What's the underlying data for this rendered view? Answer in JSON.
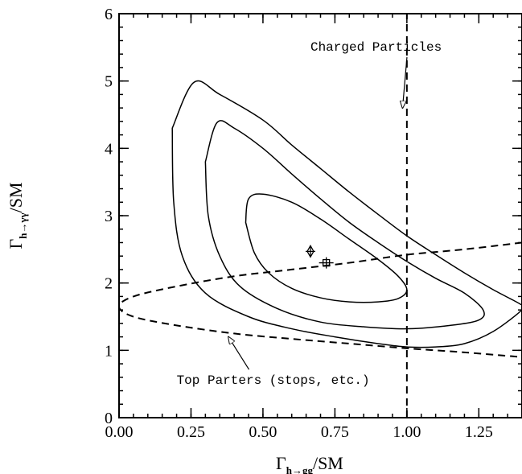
{
  "chart_data": {
    "type": "line",
    "title": "",
    "xlabel": {
      "symbol": "Γ",
      "sub": "h→gg",
      "suffix": "/SM"
    },
    "ylabel": {
      "symbol": "Γ",
      "sub": "h→γγ",
      "suffix": "/SM"
    },
    "xlim": [
      0.0,
      1.4
    ],
    "ylim": [
      0,
      6
    ],
    "xticks": [
      0.0,
      0.25,
      0.5,
      0.75,
      1.0,
      1.25
    ],
    "xtick_labels": [
      "0.00",
      "0.25",
      "0.50",
      "0.75",
      "1.00",
      "1.25"
    ],
    "yticks": [
      0,
      1,
      2,
      3,
      4,
      5,
      6
    ],
    "ytick_labels": [
      "0",
      "1",
      "2",
      "3",
      "4",
      "5",
      "6"
    ],
    "grid": false,
    "contours": [
      {
        "level": "inner",
        "points": [
          [
            0.44,
            2.9
          ],
          [
            0.45,
            3.25
          ],
          [
            0.5,
            3.32
          ],
          [
            0.6,
            3.2
          ],
          [
            0.7,
            2.95
          ],
          [
            0.8,
            2.65
          ],
          [
            0.9,
            2.35
          ],
          [
            0.97,
            2.1
          ],
          [
            1.0,
            1.9
          ],
          [
            0.97,
            1.77
          ],
          [
            0.9,
            1.72
          ],
          [
            0.8,
            1.72
          ],
          [
            0.7,
            1.78
          ],
          [
            0.6,
            1.92
          ],
          [
            0.52,
            2.15
          ],
          [
            0.47,
            2.45
          ],
          [
            0.44,
            2.9
          ]
        ]
      },
      {
        "level": "middle",
        "points": [
          [
            0.3,
            3.8
          ],
          [
            0.34,
            4.38
          ],
          [
            0.4,
            4.3
          ],
          [
            0.5,
            4.0
          ],
          [
            0.6,
            3.62
          ],
          [
            0.7,
            3.25
          ],
          [
            0.8,
            2.9
          ],
          [
            0.9,
            2.6
          ],
          [
            1.0,
            2.32
          ],
          [
            1.1,
            2.07
          ],
          [
            1.2,
            1.85
          ],
          [
            1.265,
            1.6
          ],
          [
            1.25,
            1.45
          ],
          [
            1.15,
            1.37
          ],
          [
            1.0,
            1.32
          ],
          [
            0.85,
            1.35
          ],
          [
            0.7,
            1.42
          ],
          [
            0.55,
            1.62
          ],
          [
            0.42,
            1.95
          ],
          [
            0.35,
            2.4
          ],
          [
            0.31,
            3.0
          ],
          [
            0.3,
            3.8
          ]
        ]
      },
      {
        "level": "outer",
        "points": [
          [
            0.185,
            4.3
          ],
          [
            0.26,
            4.98
          ],
          [
            0.35,
            4.8
          ],
          [
            0.5,
            4.42
          ],
          [
            0.6,
            4.05
          ],
          [
            0.7,
            3.7
          ],
          [
            0.8,
            3.35
          ],
          [
            0.9,
            3.02
          ],
          [
            1.0,
            2.7
          ],
          [
            1.1,
            2.42
          ],
          [
            1.2,
            2.15
          ],
          [
            1.3,
            1.9
          ],
          [
            1.4,
            1.67
          ],
          [
            1.4,
            1.6
          ],
          [
            1.3,
            1.28
          ],
          [
            1.2,
            1.1
          ],
          [
            1.1,
            1.05
          ],
          [
            1.0,
            1.05
          ],
          [
            0.9,
            1.1
          ],
          [
            0.75,
            1.2
          ],
          [
            0.6,
            1.32
          ],
          [
            0.45,
            1.5
          ],
          [
            0.3,
            1.85
          ],
          [
            0.22,
            2.4
          ],
          [
            0.19,
            3.2
          ],
          [
            0.185,
            4.3
          ]
        ]
      }
    ],
    "curves": [
      {
        "label": "Charged Particles",
        "style": "dashed",
        "points": [
          [
            1.0,
            0
          ],
          [
            1.0,
            6
          ]
        ]
      },
      {
        "label": "Top Parters (stops, etc.)",
        "style": "dashed",
        "points": [
          [
            1.4,
            2.6
          ],
          [
            1.2,
            2.5
          ],
          [
            1.0,
            2.42
          ],
          [
            0.8,
            2.3
          ],
          [
            0.6,
            2.2
          ],
          [
            0.4,
            2.1
          ],
          [
            0.2,
            1.95
          ],
          [
            0.05,
            1.8
          ],
          [
            0.0,
            1.65
          ],
          [
            0.05,
            1.5
          ],
          [
            0.2,
            1.37
          ],
          [
            0.4,
            1.25
          ],
          [
            0.6,
            1.17
          ],
          [
            0.8,
            1.1
          ],
          [
            1.0,
            1.03
          ],
          [
            1.2,
            0.97
          ],
          [
            1.4,
            0.9
          ]
        ]
      }
    ],
    "points": [
      {
        "x": 0.665,
        "y": 2.47,
        "marker": "diamond-cross"
      },
      {
        "x": 0.72,
        "y": 2.3,
        "marker": "square-cross"
      }
    ],
    "annotations": [
      {
        "text": "Charged Particles",
        "x": 0.665,
        "y": 5.45,
        "arrow_to": [
          0.985,
          4.6
        ]
      },
      {
        "text": "Top Parters (stops, etc.)",
        "x": 0.2,
        "y": 0.5,
        "arrow_to": [
          0.38,
          1.2
        ]
      }
    ]
  }
}
